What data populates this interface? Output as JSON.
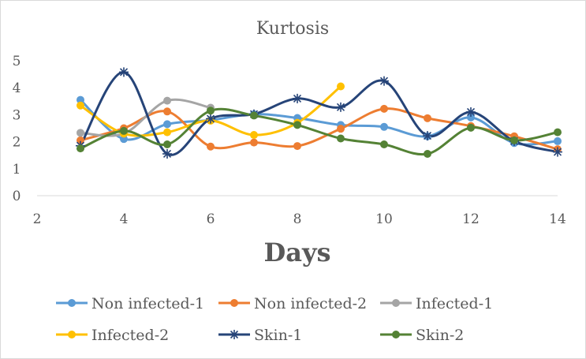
{
  "chart_data": {
    "type": "line",
    "title": "Kurtosis",
    "xlabel": "Days",
    "ylabel": "",
    "xlim": [
      2,
      14
    ],
    "ylim": [
      0,
      5
    ],
    "xticks": [
      2,
      4,
      6,
      8,
      10,
      12,
      14
    ],
    "yticks": [
      0,
      1,
      2,
      3,
      4,
      5
    ],
    "grid": false,
    "smooth": true,
    "legend_position": "bottom",
    "series": [
      {
        "name": "Non infected-1",
        "color": "#5b9bd5",
        "marker": "circle",
        "x": [
          3,
          4,
          5,
          6,
          7,
          8,
          9,
          10,
          11,
          12,
          13,
          14
        ],
        "values": [
          3.55,
          2.1,
          2.65,
          2.8,
          3.02,
          2.88,
          2.62,
          2.55,
          2.2,
          2.9,
          1.95,
          2.02
        ]
      },
      {
        "name": "Non infected-2",
        "color": "#ed7d31",
        "marker": "circle",
        "x": [
          3,
          4,
          5,
          6,
          7,
          8,
          9,
          10,
          11,
          12,
          13,
          14
        ],
        "values": [
          2.05,
          2.5,
          3.12,
          1.82,
          1.97,
          1.84,
          2.48,
          3.22,
          2.87,
          2.58,
          2.2,
          1.72
        ]
      },
      {
        "name": "Infected-1",
        "color": "#a5a5a5",
        "marker": "circle",
        "x": [
          3,
          4,
          5,
          6
        ],
        "values": [
          2.33,
          2.3,
          3.52,
          3.26
        ]
      },
      {
        "name": "Infected-2",
        "color": "#ffc000",
        "marker": "circle",
        "x": [
          3,
          4,
          5,
          6,
          7,
          8,
          9
        ],
        "values": [
          3.34,
          2.3,
          2.35,
          2.78,
          2.25,
          2.7,
          4.05
        ]
      },
      {
        "name": "Skin-1",
        "color": "#264478",
        "marker": "star",
        "x": [
          3,
          4,
          5,
          6,
          7,
          8,
          9,
          10,
          11,
          12,
          13,
          14
        ],
        "values": [
          1.85,
          4.58,
          1.55,
          2.85,
          3.02,
          3.6,
          3.28,
          4.25,
          2.22,
          3.1,
          2.02,
          1.62
        ]
      },
      {
        "name": "Skin-2",
        "color": "#548235",
        "marker": "circle",
        "x": [
          3,
          4,
          5,
          6,
          7,
          8,
          9,
          10,
          11,
          12,
          13,
          14
        ],
        "values": [
          1.75,
          2.4,
          1.9,
          3.15,
          2.97,
          2.62,
          2.12,
          1.9,
          1.55,
          2.52,
          2.05,
          2.35
        ]
      }
    ]
  }
}
